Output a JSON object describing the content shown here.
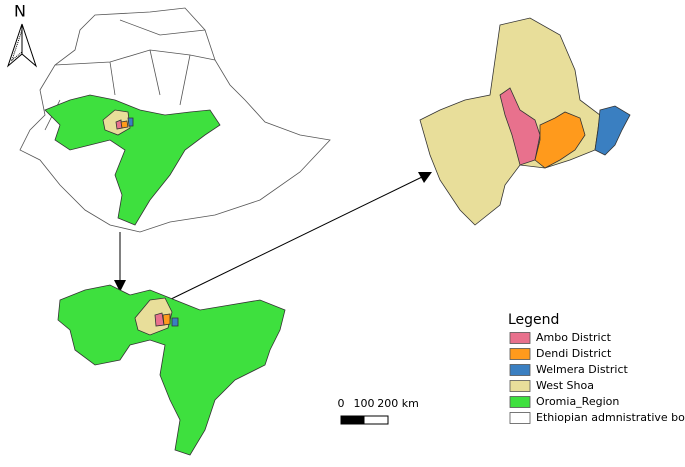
{
  "north_label": "N",
  "scale_bar": {
    "labels": [
      "0",
      "100",
      "200 km"
    ]
  },
  "legend": {
    "title": "Legend",
    "items": [
      {
        "label": "Ambo District",
        "color": "#e8718d"
      },
      {
        "label": "Dendi District",
        "color": "#ff9a1c"
      },
      {
        "label": "Welmera District",
        "color": "#3a7fc1"
      },
      {
        "label": "West Shoa",
        "color": "#e8de9a"
      },
      {
        "label": "Oromia_Region",
        "color": "#3ee03e"
      },
      {
        "label": "Ethiopian admnistrative boundary",
        "color": "#ffffff"
      }
    ]
  }
}
